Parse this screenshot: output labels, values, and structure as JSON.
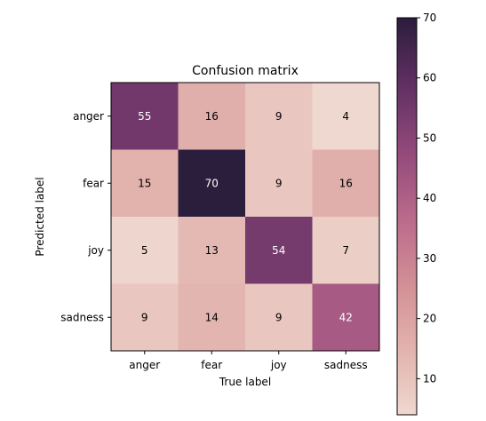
{
  "chart_data": {
    "type": "heatmap",
    "title": "Confusion matrix",
    "xlabel": "True label",
    "ylabel": "Predicted label",
    "x_categories": [
      "anger",
      "fear",
      "joy",
      "sadness"
    ],
    "y_categories": [
      "anger",
      "fear",
      "joy",
      "sadness"
    ],
    "values": [
      [
        55,
        16,
        9,
        4
      ],
      [
        15,
        70,
        9,
        16
      ],
      [
        5,
        13,
        54,
        7
      ],
      [
        9,
        14,
        9,
        42
      ]
    ],
    "colorbar": {
      "min": 4,
      "max": 70,
      "ticks": [
        10,
        20,
        30,
        40,
        50,
        60,
        70
      ],
      "colormap": [
        "#efd8d0",
        "#e2b2ad",
        "#d28e95",
        "#b9698a",
        "#91497a",
        "#602f62",
        "#2b1d3c"
      ]
    },
    "grid": false
  }
}
